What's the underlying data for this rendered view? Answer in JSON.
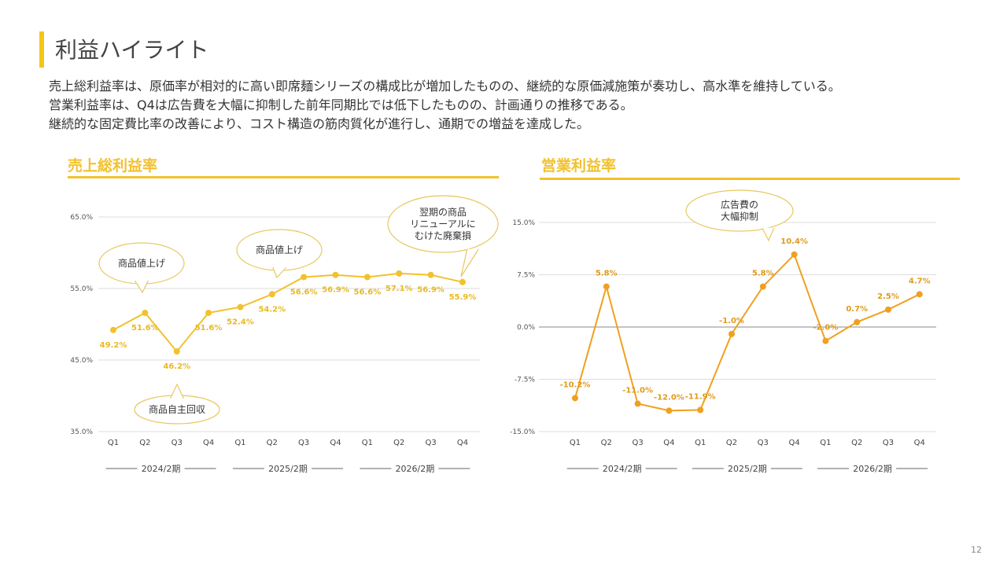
{
  "title": "利益ハイライト",
  "description": [
    "売上総利益率は、原価率が相対的に高い即席麺シリーズの構成比が増加したものの、継続的な原価減施策が奏功し、高水準を維持している。",
    "営業利益率は、Q4は広告費を大幅に抑制した前年同期比では低下したものの、計画通りの推移である。",
    "継続的な固定費比率の改善により、コスト構造の筋肉質化が進行し、通期での増益を達成した。"
  ],
  "page_number": "12",
  "colors": {
    "accent": "#f5c518",
    "gross": "#f2c12e",
    "operating": "#f0a020"
  },
  "chart_data": [
    {
      "type": "line",
      "title": "売上総利益率",
      "categories": [
        "Q1",
        "Q2",
        "Q3",
        "Q4",
        "Q1",
        "Q2",
        "Q3",
        "Q4",
        "Q1",
        "Q2",
        "Q3",
        "Q4"
      ],
      "groups": [
        "2024/2期",
        "2025/2期",
        "2026/2期"
      ],
      "values": [
        49.2,
        51.6,
        46.2,
        51.6,
        52.4,
        54.2,
        56.6,
        56.9,
        56.6,
        57.1,
        56.9,
        55.9
      ],
      "labels": [
        "49.2%",
        "51.6%",
        "46.2%",
        "51.6%",
        "52.4%",
        "54.2%",
        "56.6%",
        "56.9%",
        "56.6%",
        "57.1%",
        "56.9%",
        "55.9%"
      ],
      "ylim": [
        35,
        65
      ],
      "yticks": [
        "35.0%",
        "45.0%",
        "55.0%",
        "65.0%"
      ],
      "grid": true,
      "annotations": [
        {
          "text": "商品値上げ",
          "point": 1
        },
        {
          "text": "商品値上げ",
          "point": 5
        },
        {
          "text": "翌期の商品\nリニューアルに\nむけた廃棄損",
          "point": 11
        },
        {
          "text": "商品自主回収",
          "point": 2
        }
      ]
    },
    {
      "type": "line",
      "title": "営業利益率",
      "categories": [
        "Q1",
        "Q2",
        "Q3",
        "Q4",
        "Q1",
        "Q2",
        "Q3",
        "Q4",
        "Q1",
        "Q2",
        "Q3",
        "Q4"
      ],
      "groups": [
        "2024/2期",
        "2025/2期",
        "2026/2期"
      ],
      "values": [
        -10.2,
        5.8,
        -11.0,
        -12.0,
        -11.9,
        -1.0,
        5.8,
        10.4,
        -2.0,
        0.7,
        2.5,
        4.7
      ],
      "labels": [
        "-10.2%",
        "5.8%",
        "-11.0%",
        "-12.0%",
        "-11.9%",
        "-1.0%",
        "5.8%",
        "10.4%",
        "-2.0%",
        "0.7%",
        "2.5%",
        "4.7%"
      ],
      "ylim": [
        -15,
        15
      ],
      "yticks": [
        "-15.0%",
        "-7.5%",
        "0.0%",
        "7.5%",
        "15.0%"
      ],
      "grid": true,
      "annotations": [
        {
          "text": "広告費の\n大幅抑制",
          "point": 7
        }
      ]
    }
  ]
}
